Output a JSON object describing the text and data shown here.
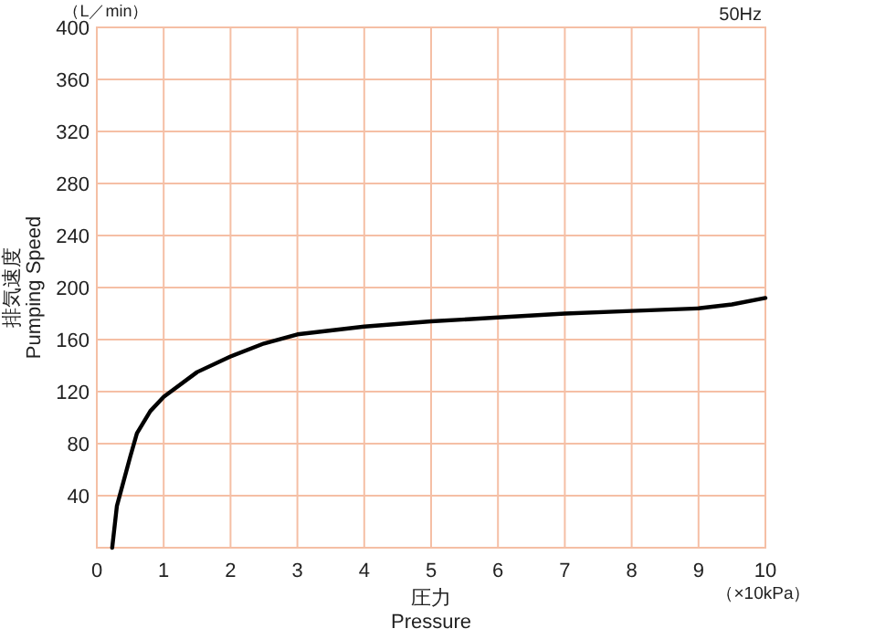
{
  "chart_data": {
    "type": "line",
    "subtitle": "50Hz",
    "xlabel": "圧力\nPressure",
    "ylabel": "排気速度\nPumping Speed",
    "annotations": [
      "（L／min）",
      "（×10kPa）"
    ],
    "x": [
      0.23,
      0.3,
      0.5,
      0.6,
      0.8,
      1,
      1.5,
      2,
      2.5,
      3,
      4,
      5,
      6,
      7,
      8,
      9,
      9.5,
      10
    ],
    "series": [
      {
        "color": "#000000",
        "values": [
          0,
          32,
          70,
          88,
          105,
          116,
          135,
          147,
          157,
          164,
          170,
          174,
          177,
          180,
          182,
          184,
          187,
          192
        ]
      }
    ],
    "xlim": [
      0,
      10
    ],
    "xticks": [
      0,
      1,
      2,
      3,
      4,
      5,
      6,
      7,
      8,
      9,
      10
    ],
    "ylim": [
      0,
      400
    ],
    "yticks": [
      {
        "value": 0,
        "label": null
      },
      40,
      80,
      120,
      160,
      200,
      240,
      280,
      320,
      360,
      400
    ],
    "grid": true,
    "marker": "none",
    "line_style": "solid"
  }
}
